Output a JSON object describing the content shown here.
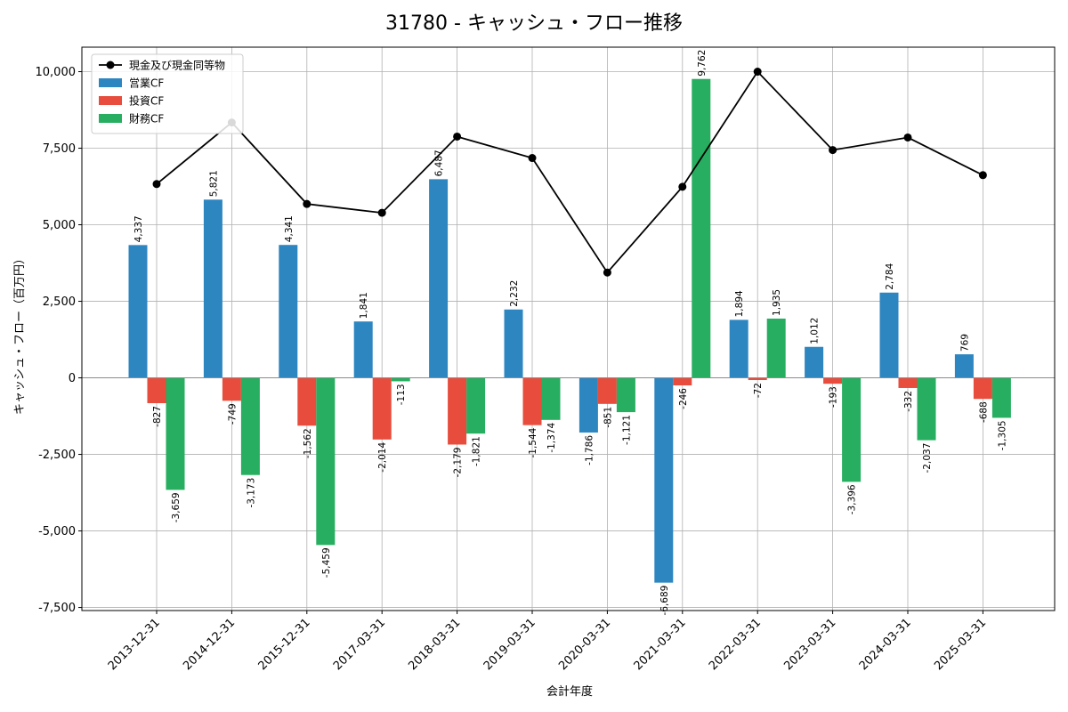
{
  "chart_data": {
    "type": "bar",
    "title": "31780 - キャッシュ・フロー推移",
    "xlabel": "会計年度",
    "ylabel": "キャッシュ・フロー（百万円）",
    "ylim": [
      -7600,
      10800
    ],
    "yticks": [
      -7500,
      -5000,
      -2500,
      0,
      2500,
      5000,
      7500,
      10000
    ],
    "ytick_labels": [
      "-7,500",
      "-5,000",
      "-2,500",
      "0",
      "2,500",
      "5,000",
      "7,500",
      "10,000"
    ],
    "grid": true,
    "legend_position": "top-left",
    "categories": [
      "2013-12-31",
      "2014-12-31",
      "2015-12-31",
      "2017-03-31",
      "2018-03-31",
      "2019-03-31",
      "2020-03-31",
      "2021-03-31",
      "2022-03-31",
      "2023-03-31",
      "2024-03-31",
      "2025-03-31"
    ],
    "series": [
      {
        "name": "営業CF",
        "kind": "bar",
        "color": "#2e86c1",
        "values": [
          4337,
          5821,
          4341,
          1841,
          6487,
          2232,
          -1786,
          -6689,
          1894,
          1012,
          2784,
          769
        ],
        "labels": [
          "4,337",
          "5,821",
          "4,341",
          "1,841",
          "6,487",
          "2,232",
          "-1,786",
          "-6,689",
          "1,894",
          "1,012",
          "2,784",
          "769"
        ]
      },
      {
        "name": "投資CF",
        "kind": "bar",
        "color": "#e74c3c",
        "values": [
          -827,
          -749,
          -1562,
          -2014,
          -2179,
          -1544,
          -851,
          -246,
          -72,
          -193,
          -332,
          -688
        ],
        "labels": [
          "-827",
          "-749",
          "-1,562",
          "-2,014",
          "-2,179",
          "-1,544",
          "-851",
          "-246",
          "-72",
          "-193",
          "-332",
          "-688"
        ]
      },
      {
        "name": "財務CF",
        "kind": "bar",
        "color": "#27ae60",
        "values": [
          -3659,
          -3173,
          -5459,
          -113,
          -1821,
          -1374,
          -1121,
          9762,
          1935,
          -3396,
          -2037,
          -1305
        ],
        "labels": [
          "-3,659",
          "-3,173",
          "-5,459",
          "-113",
          "-1,821",
          "-1,374",
          "-1,121",
          "9,762",
          "1,935",
          "-3,396",
          "-2,037",
          "-1,305"
        ]
      },
      {
        "name": "現金及び現金同等物",
        "kind": "line",
        "color": "#000000",
        "values": [
          6330,
          8340,
          5680,
          5390,
          7880,
          7180,
          3440,
          6240,
          10000,
          7440,
          7850,
          6620
        ]
      }
    ]
  }
}
